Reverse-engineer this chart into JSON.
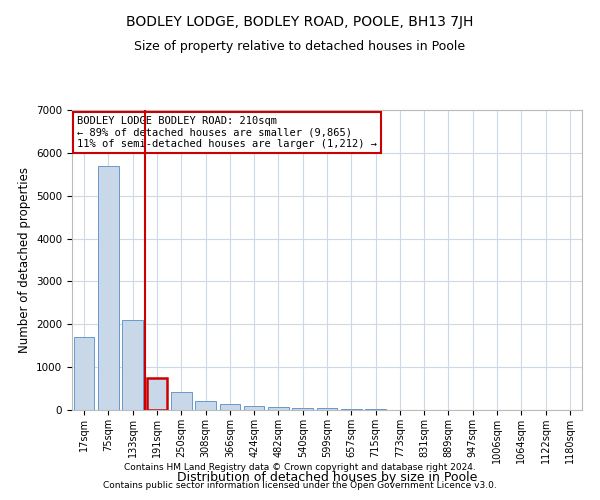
{
  "title": "BODLEY LODGE, BODLEY ROAD, POOLE, BH13 7JH",
  "subtitle": "Size of property relative to detached houses in Poole",
  "xlabel": "Distribution of detached houses by size in Poole",
  "ylabel": "Number of detached properties",
  "footnote1": "Contains HM Land Registry data © Crown copyright and database right 2024.",
  "footnote2": "Contains public sector information licensed under the Open Government Licence v3.0.",
  "categories": [
    "17sqm",
    "75sqm",
    "133sqm",
    "191sqm",
    "250sqm",
    "308sqm",
    "366sqm",
    "424sqm",
    "482sqm",
    "540sqm",
    "599sqm",
    "657sqm",
    "715sqm",
    "773sqm",
    "831sqm",
    "889sqm",
    "947sqm",
    "1006sqm",
    "1064sqm",
    "1122sqm",
    "1180sqm"
  ],
  "values": [
    1700,
    5700,
    2100,
    750,
    430,
    220,
    130,
    90,
    70,
    50,
    50,
    30,
    20,
    10,
    5,
    5,
    3,
    2,
    2,
    1,
    1
  ],
  "bar_color": "#c8d8e8",
  "bar_edge_color": "#6699cc",
  "highlight_index": 3,
  "highlight_color": "#cc0000",
  "vline_x": 2.5,
  "annotation_text_line1": "BODLEY LODGE BODLEY ROAD: 210sqm",
  "annotation_text_line2": "← 89% of detached houses are smaller (9,865)",
  "annotation_text_line3": "11% of semi-detached houses are larger (1,212) →",
  "ylim": [
    0,
    7000
  ],
  "yticks": [
    0,
    1000,
    2000,
    3000,
    4000,
    5000,
    6000,
    7000
  ],
  "bg_color": "#ffffff",
  "grid_color": "#ccd9e8",
  "title_fontsize": 10,
  "subtitle_fontsize": 9,
  "tick_fontsize": 7,
  "ylabel_fontsize": 8.5,
  "xlabel_fontsize": 9,
  "footnote_fontsize": 6.5,
  "annotation_fontsize": 7.5
}
